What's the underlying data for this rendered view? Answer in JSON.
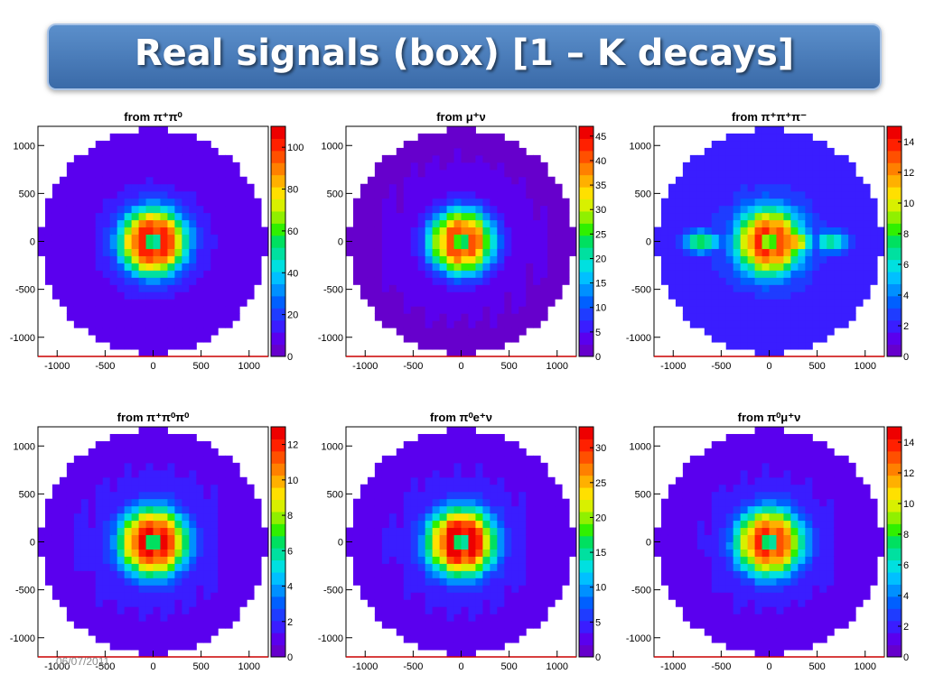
{
  "slide": {
    "title": "Real signals (box) [1 – K decays]",
    "date": "06/07/2011"
  },
  "colors": {
    "title_bg": "#4a7cbb",
    "frame": "#cc0000"
  },
  "chart_data": [
    {
      "type": "heatmap",
      "title": "from π⁺π⁰",
      "xlim": [
        -1200,
        1200
      ],
      "ylim": [
        -1200,
        1200
      ],
      "xticks": [
        -1000,
        -500,
        0,
        500,
        1000
      ],
      "yticks": [
        1000,
        500,
        0,
        -500,
        -1000
      ],
      "colorbar": {
        "max": 110,
        "ticks": [
          100,
          80,
          60,
          40,
          20,
          0
        ]
      },
      "peak_value": 100,
      "background_value": 12,
      "ring_radius": 120,
      "blobs": []
    },
    {
      "type": "heatmap",
      "title": "from μ⁺ν",
      "xlim": [
        -1200,
        1200
      ],
      "ylim": [
        -1200,
        1200
      ],
      "xticks": [
        -1000,
        -500,
        0,
        500,
        1000
      ],
      "yticks": [
        1000,
        500,
        0,
        -500,
        -1000
      ],
      "colorbar": {
        "max": 47,
        "ticks": [
          45,
          40,
          35,
          30,
          25,
          20,
          15,
          10,
          5,
          0
        ]
      },
      "peak_value": 40,
      "background_value": 3,
      "ring_radius": 110,
      "blobs": []
    },
    {
      "type": "heatmap",
      "title": "from π⁺π⁺π⁻",
      "xlim": [
        -1200,
        1200
      ],
      "ylim": [
        -1200,
        1200
      ],
      "xticks": [
        -1000,
        -500,
        0,
        500,
        1000
      ],
      "yticks": [
        1000,
        500,
        0,
        -500,
        -1000
      ],
      "colorbar": {
        "max": 15,
        "ticks": [
          14,
          12,
          10,
          8,
          6,
          4,
          2,
          0
        ]
      },
      "peak_value": 13,
      "background_value": 2.5,
      "ring_radius": 110,
      "blobs": [
        {
          "x": 220,
          "y": 0,
          "value": 13
        },
        {
          "x": -700,
          "y": 0,
          "value": 8
        },
        {
          "x": 650,
          "y": 0,
          "value": 7
        }
      ]
    },
    {
      "type": "heatmap",
      "title": "from π⁺π⁰π⁰",
      "xlim": [
        -1200,
        1200
      ],
      "ylim": [
        -1200,
        1200
      ],
      "xticks": [
        -1000,
        -500,
        0,
        500,
        1000
      ],
      "yticks": [
        1000,
        500,
        0,
        -500,
        -1000
      ],
      "colorbar": {
        "max": 13,
        "ticks": [
          12,
          10,
          8,
          6,
          4,
          2,
          0
        ]
      },
      "peak_value": 12,
      "background_value": 1.6,
      "ring_radius": 120,
      "blobs": []
    },
    {
      "type": "heatmap",
      "title": "from π⁰e⁺ν",
      "xlim": [
        -1200,
        1200
      ],
      "ylim": [
        -1200,
        1200
      ],
      "xticks": [
        -1000,
        -500,
        0,
        500,
        1000
      ],
      "yticks": [
        1000,
        500,
        0,
        -500,
        -1000
      ],
      "colorbar": {
        "max": 33,
        "ticks": [
          30,
          25,
          20,
          15,
          10,
          5,
          0
        ]
      },
      "peak_value": 31,
      "background_value": 4,
      "ring_radius": 125,
      "blobs": []
    },
    {
      "type": "heatmap",
      "title": "from π⁰μ⁺ν",
      "xlim": [
        -1200,
        1200
      ],
      "ylim": [
        -1200,
        1200
      ],
      "xticks": [
        -1000,
        -500,
        0,
        500,
        1000
      ],
      "yticks": [
        1000,
        500,
        0,
        -500,
        -1000
      ],
      "colorbar": {
        "max": 15,
        "ticks": [
          14,
          12,
          10,
          8,
          6,
          4,
          2,
          0
        ]
      },
      "peak_value": 13,
      "background_value": 1.8,
      "ring_radius": 120,
      "blobs": []
    }
  ]
}
